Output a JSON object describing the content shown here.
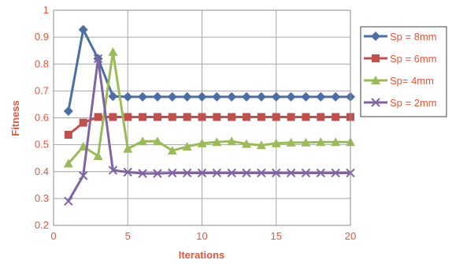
{
  "chart_data": {
    "type": "line",
    "xlabel": "Iterations",
    "ylabel": "Fitness",
    "xlim": [
      0,
      20
    ],
    "ylim": [
      0.2,
      1.0
    ],
    "xticks": [
      0,
      5,
      10,
      15,
      20
    ],
    "yticks": [
      0.2,
      0.3,
      0.4,
      0.5,
      0.6,
      0.7,
      0.8,
      0.9,
      1.0
    ],
    "ytick_labels": [
      "0.2",
      "0.3",
      "0.4",
      "0.5",
      "0.6",
      "0.7",
      "0.8",
      "0.9",
      "1"
    ],
    "grid": true,
    "legend_position": "right",
    "x": [
      1,
      2,
      3,
      4,
      5,
      6,
      7,
      8,
      9,
      10,
      11,
      12,
      13,
      14,
      15,
      16,
      17,
      18,
      19,
      20
    ],
    "series": [
      {
        "name": "Sp = 8mm",
        "color": "#4a6fa5",
        "marker": "diamond",
        "values": [
          0.625,
          0.928,
          0.82,
          0.68,
          0.678,
          0.678,
          0.678,
          0.678,
          0.678,
          0.678,
          0.678,
          0.678,
          0.678,
          0.678,
          0.678,
          0.678,
          0.678,
          0.678,
          0.678,
          0.678
        ]
      },
      {
        "name": "Sp = 6mm",
        "color": "#c0504d",
        "marker": "square",
        "values": [
          0.537,
          0.582,
          0.603,
          0.603,
          0.603,
          0.603,
          0.603,
          0.603,
          0.603,
          0.603,
          0.603,
          0.603,
          0.603,
          0.603,
          0.603,
          0.603,
          0.603,
          0.603,
          0.603,
          0.603
        ]
      },
      {
        "name": "Sp= 4mm",
        "color": "#9bbb59",
        "marker": "triangle",
        "values": [
          0.43,
          0.493,
          0.458,
          0.845,
          0.485,
          0.513,
          0.513,
          0.478,
          0.493,
          0.505,
          0.51,
          0.513,
          0.503,
          0.498,
          0.505,
          0.508,
          0.508,
          0.51,
          0.51,
          0.51
        ]
      },
      {
        "name": "Sp = 2mm",
        "color": "#8064a2",
        "marker": "x",
        "values": [
          0.29,
          0.385,
          0.82,
          0.405,
          0.398,
          0.393,
          0.393,
          0.395,
          0.395,
          0.395,
          0.395,
          0.395,
          0.395,
          0.395,
          0.395,
          0.395,
          0.395,
          0.395,
          0.395,
          0.395
        ]
      }
    ]
  }
}
